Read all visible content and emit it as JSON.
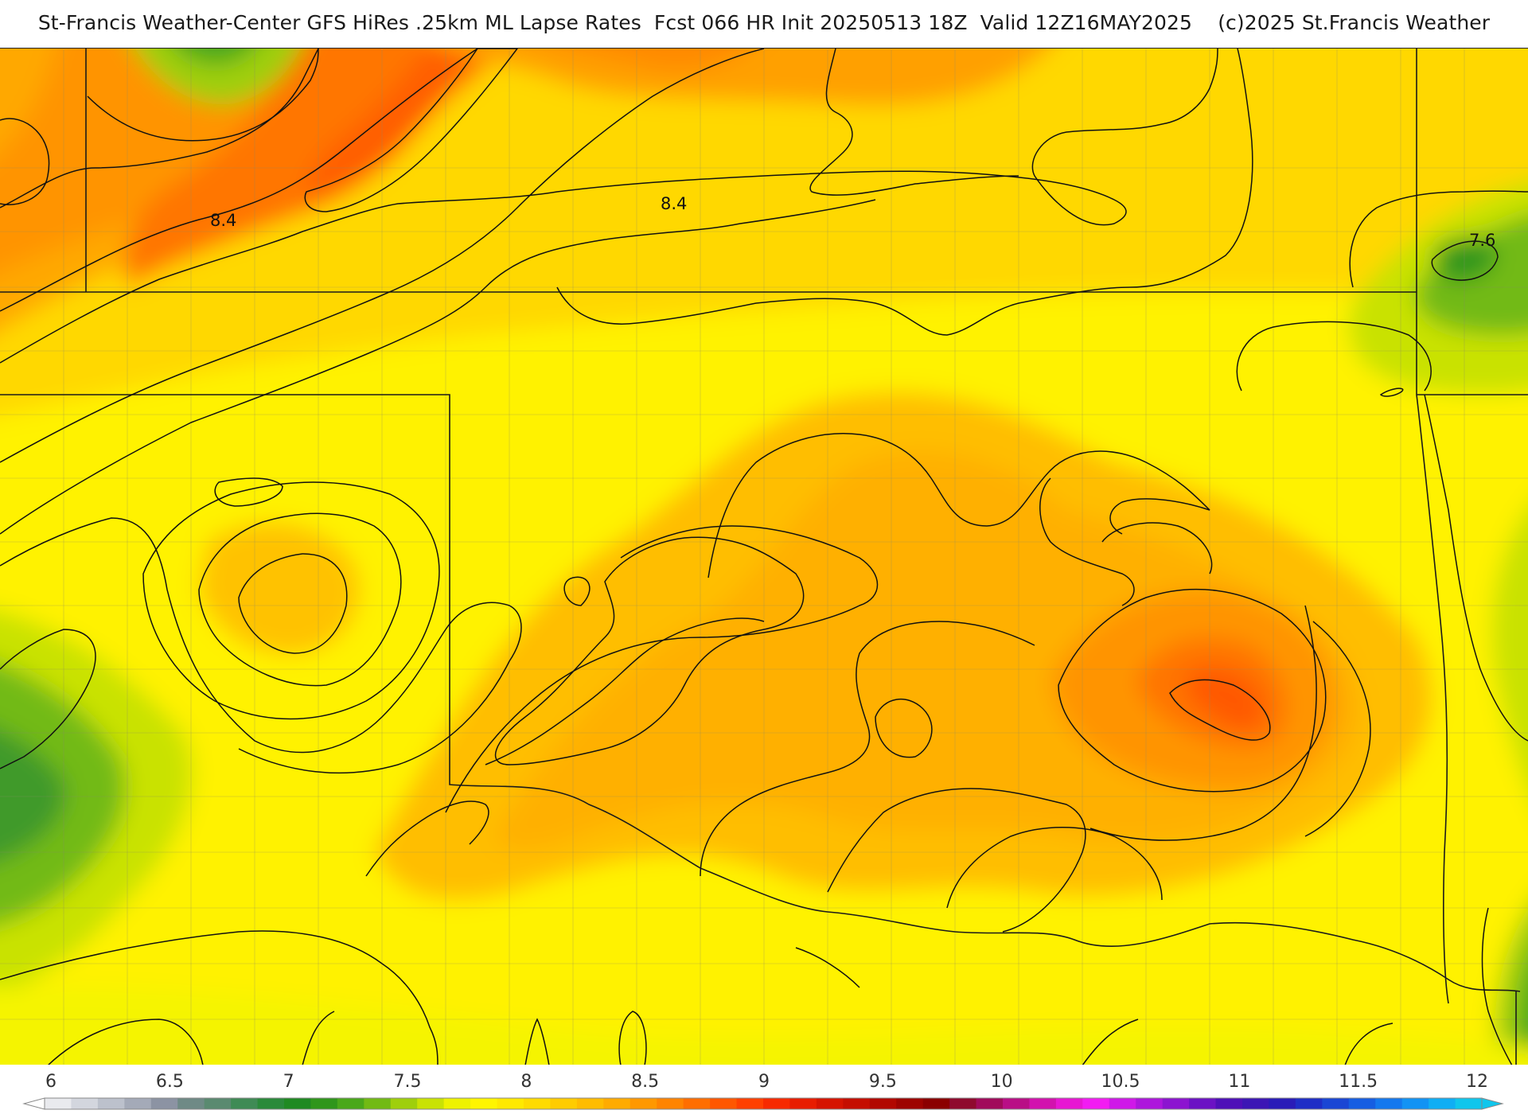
{
  "title": "St-Francis Weather-Center GFS HiRes .25km ML Lapse Rates  Fcst 066 HR Init 20250513 18Z  Valid 12Z16MAY2025    (c)2025 St.Francis Weather",
  "contour_labels": [
    "8.4",
    "8.4",
    "7.6"
  ],
  "colorbar": {
    "ticks": [
      "6",
      "6.5",
      "7",
      "7.5",
      "8",
      "8.5",
      "9",
      "9.5",
      "10",
      "10.5",
      "11",
      "11.5",
      "12"
    ],
    "colors": [
      "#e9eaee",
      "#d3d6de",
      "#bcc1cc",
      "#a4aab8",
      "#8c93a3",
      "#6f8a86",
      "#5a8a70",
      "#3f8b55",
      "#2a8a3a",
      "#1f8a22",
      "#2f961b",
      "#4aa81a",
      "#72ba14",
      "#9fcf0c",
      "#c9e204",
      "#eef200",
      "#fff500",
      "#ffe900",
      "#ffdb00",
      "#ffcc00",
      "#ffbc00",
      "#ffab00",
      "#ff9800",
      "#ff8400",
      "#ff6e00",
      "#ff5700",
      "#ff4000",
      "#f72a00",
      "#e81d00",
      "#d61400",
      "#c50e00",
      "#b20800",
      "#9e0400",
      "#8b0000",
      "#8f0a2e",
      "#a10a5b",
      "#b90e86",
      "#d212ae",
      "#e716d3",
      "#f21cf2",
      "#cf18e8",
      "#ad16dc",
      "#8c14d0",
      "#6b12c4",
      "#4e10b8",
      "#3c16b5",
      "#2a1cb8",
      "#1f2ec6",
      "#1a46d4",
      "#165ee2",
      "#1478ee",
      "#1293f4",
      "#10aef4",
      "#10c6ec"
    ]
  }
}
